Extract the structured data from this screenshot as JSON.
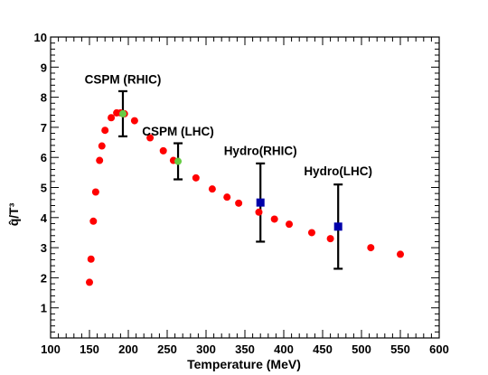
{
  "chart_data": {
    "type": "scatter",
    "xlabel": "Temperature (MeV)",
    "ylabel": "q̂/T³",
    "xlim": [
      100,
      600
    ],
    "ylim": [
      0,
      10
    ],
    "xticks": [
      "100",
      "150",
      "200",
      "250",
      "300",
      "350",
      "400",
      "450",
      "500",
      "550",
      "600"
    ],
    "yticks": [
      "1",
      "2",
      "3",
      "4",
      "5",
      "6",
      "7",
      "8",
      "9",
      "10"
    ],
    "grid": false,
    "series": [
      {
        "marker": "circle",
        "color": "#ff0000",
        "points": [
          [
            150,
            1.85
          ],
          [
            152,
            2.62
          ],
          [
            155,
            3.88
          ],
          [
            158,
            4.85
          ],
          [
            163,
            5.9
          ],
          [
            166,
            6.38
          ],
          [
            170,
            6.9
          ],
          [
            178,
            7.32
          ],
          [
            185,
            7.48
          ],
          [
            190,
            7.48
          ],
          [
            195,
            7.45
          ],
          [
            208,
            7.22
          ],
          [
            228,
            6.65
          ],
          [
            245,
            6.22
          ],
          [
            258,
            5.9
          ],
          [
            287,
            5.32
          ],
          [
            308,
            4.95
          ],
          [
            327,
            4.68
          ],
          [
            342,
            4.48
          ],
          [
            368,
            4.18
          ],
          [
            388,
            3.95
          ],
          [
            407,
            3.78
          ],
          [
            436,
            3.5
          ],
          [
            460,
            3.3
          ],
          [
            512,
            3.0
          ],
          [
            550,
            2.78
          ]
        ]
      },
      {
        "marker": "circle",
        "color": "#66cc44",
        "points": [
          {
            "x": 193,
            "y": 7.45,
            "yerr": 0.75
          },
          {
            "x": 264,
            "y": 5.87,
            "yerr": 0.6
          }
        ]
      },
      {
        "marker": "square",
        "color": "#0000aa",
        "points": [
          {
            "x": 370,
            "y": 4.5,
            "yerr": 1.3
          },
          {
            "x": 470,
            "y": 3.7,
            "yerr": 1.4
          }
        ]
      }
    ],
    "annotations": [
      {
        "text": "CSPM (RHIC)",
        "x": 193,
        "y": 8.45
      },
      {
        "text": "CSPM (LHC)",
        "x": 264,
        "y": 6.72
      },
      {
        "text": "Hydro(RHIC)",
        "x": 370,
        "y": 6.08
      },
      {
        "text": "Hydro(LHC)",
        "x": 470,
        "y": 5.4
      }
    ]
  }
}
